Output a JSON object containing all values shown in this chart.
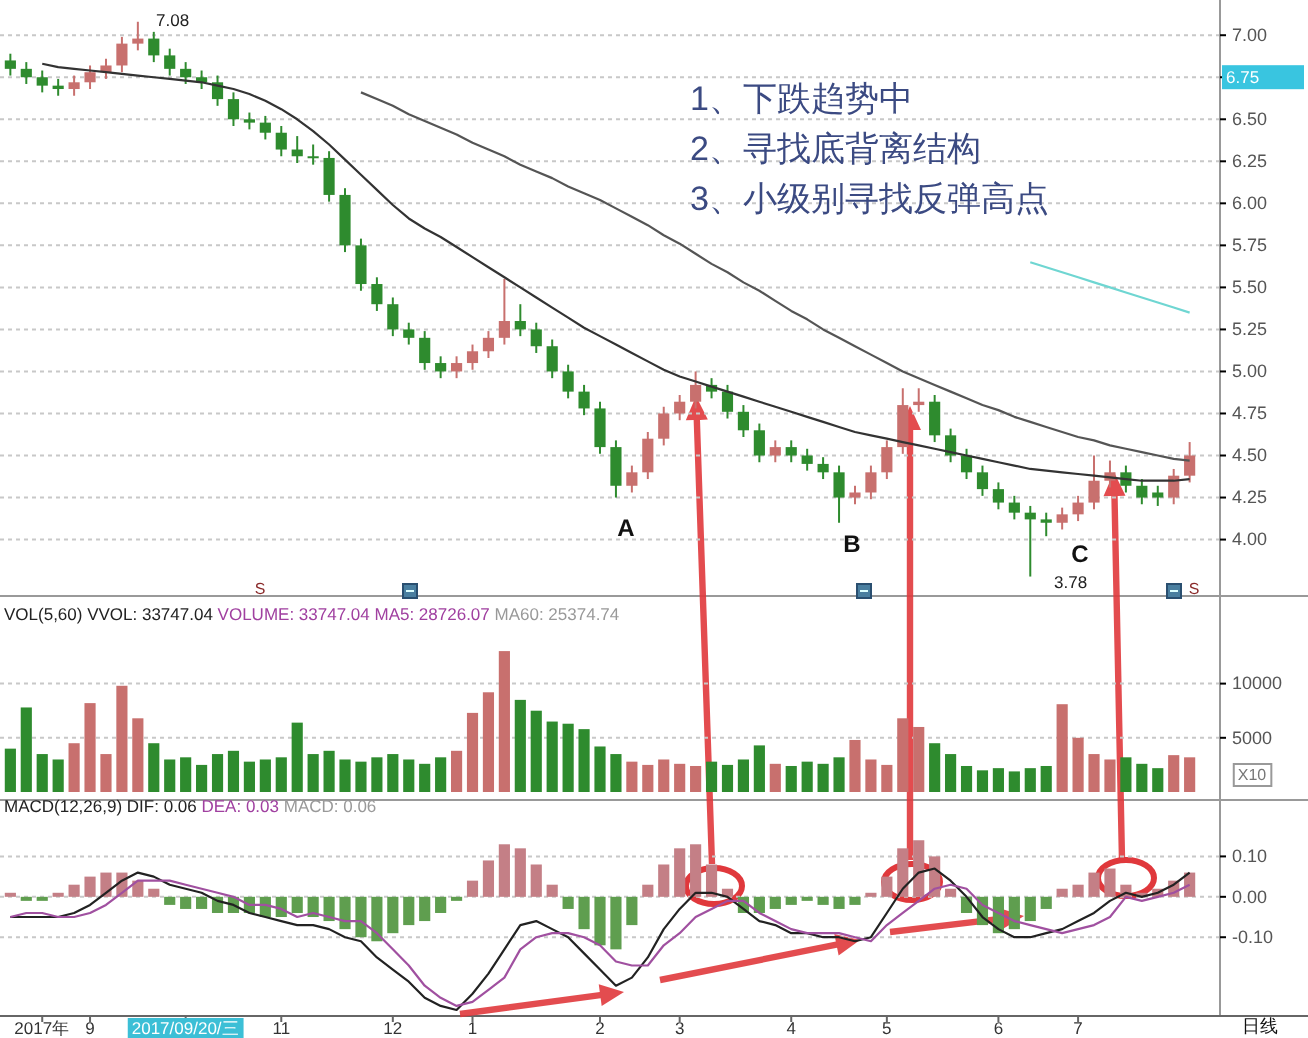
{
  "chart_data": [
    {
      "type": "candlestick",
      "tick_labels": "y",
      "grid": "y",
      "categories": [
        null,
        null,
        null,
        null,
        null,
        null,
        null,
        null,
        null,
        null,
        null,
        null,
        null,
        null,
        null,
        null,
        null,
        null,
        null,
        null,
        null,
        null,
        null,
        null,
        null,
        null,
        null,
        null,
        null,
        null,
        null,
        null,
        null,
        null,
        null,
        null,
        null,
        null,
        null,
        null,
        null,
        null,
        null,
        null,
        null,
        null,
        null,
        null,
        null,
        null,
        null,
        null,
        null,
        null,
        null,
        null,
        null,
        null,
        null,
        null,
        null,
        null,
        null,
        null,
        null,
        null,
        null,
        null,
        null,
        null,
        null,
        null,
        null,
        null,
        null
      ],
      "ylim": [
        3.7,
        7.15
      ],
      "yticks": [
        {
          "value": 4,
          "label": "4.00"
        },
        {
          "value": 4.25,
          "label": "4.25"
        },
        {
          "value": 4.5,
          "label": "4.50"
        },
        {
          "value": 4.75,
          "label": "4.75"
        },
        {
          "value": 5,
          "label": "5.00"
        },
        {
          "value": 5.25,
          "label": "5.25"
        },
        {
          "value": 5.5,
          "label": "5.50"
        },
        {
          "value": 5.75,
          "label": "5.75"
        },
        {
          "value": 6,
          "label": "6.00"
        },
        {
          "value": 6.25,
          "label": "6.25"
        },
        {
          "value": 6.5,
          "label": "6.50"
        },
        {
          "value": 6.75,
          "label": null
        },
        {
          "value": 7,
          "label": "7.00"
        }
      ],
      "ohlc": [
        [
          6.85,
          6.89,
          6.76,
          6.8
        ],
        [
          6.8,
          6.84,
          6.71,
          6.75
        ],
        [
          6.75,
          6.79,
          6.66,
          6.7
        ],
        [
          6.7,
          6.74,
          6.64,
          6.68
        ],
        [
          6.68,
          6.76,
          6.64,
          6.72
        ],
        [
          6.72,
          6.82,
          6.68,
          6.78
        ],
        [
          6.78,
          6.86,
          6.74,
          6.82
        ],
        [
          6.82,
          6.99,
          6.78,
          6.95
        ],
        [
          6.95,
          7.08,
          6.91,
          6.98
        ],
        [
          6.98,
          7.02,
          6.84,
          6.88
        ],
        [
          6.88,
          6.92,
          6.76,
          6.8
        ],
        [
          6.8,
          6.84,
          6.71,
          6.75
        ],
        [
          6.75,
          6.79,
          6.68,
          6.72
        ],
        [
          6.72,
          6.76,
          6.58,
          6.62
        ],
        [
          6.62,
          6.66,
          6.46,
          6.5
        ],
        [
          6.5,
          6.54,
          6.44,
          6.48
        ],
        [
          6.48,
          6.52,
          6.38,
          6.42
        ],
        [
          6.42,
          6.46,
          6.28,
          6.32
        ],
        [
          6.32,
          6.4,
          6.24,
          6.28
        ],
        [
          6.28,
          6.35,
          6.23,
          6.27
        ],
        [
          6.27,
          6.31,
          6.01,
          6.05
        ],
        [
          6.05,
          6.09,
          5.71,
          5.75
        ],
        [
          5.75,
          5.79,
          5.48,
          5.52
        ],
        [
          5.52,
          5.56,
          5.36,
          5.4
        ],
        [
          5.4,
          5.44,
          5.21,
          5.25
        ],
        [
          5.25,
          5.29,
          5.16,
          5.2
        ],
        [
          5.2,
          5.24,
          5.01,
          5.05
        ],
        [
          5.05,
          5.09,
          4.96,
          5.0
        ],
        [
          5.0,
          5.09,
          4.96,
          5.05
        ],
        [
          5.05,
          5.16,
          5.01,
          5.12
        ],
        [
          5.12,
          5.24,
          5.08,
          5.2
        ],
        [
          5.2,
          5.55,
          5.16,
          5.3
        ],
        [
          5.3,
          5.4,
          5.21,
          5.25
        ],
        [
          5.25,
          5.29,
          5.11,
          5.15
        ],
        [
          5.15,
          5.19,
          4.96,
          5.0
        ],
        [
          5.0,
          5.04,
          4.84,
          4.88
        ],
        [
          4.88,
          4.92,
          4.74,
          4.78
        ],
        [
          4.78,
          4.82,
          4.51,
          4.55
        ],
        [
          4.55,
          4.59,
          4.25,
          4.32
        ],
        [
          4.32,
          4.44,
          4.28,
          4.4
        ],
        [
          4.4,
          4.64,
          4.36,
          4.6
        ],
        [
          4.6,
          4.79,
          4.56,
          4.75
        ],
        [
          4.75,
          4.86,
          4.71,
          4.82
        ],
        [
          4.82,
          5.0,
          4.78,
          4.92
        ],
        [
          4.92,
          4.96,
          4.84,
          4.88
        ],
        [
          4.88,
          4.92,
          4.72,
          4.76
        ],
        [
          4.76,
          4.8,
          4.61,
          4.65
        ],
        [
          4.65,
          4.69,
          4.46,
          4.5
        ],
        [
          4.5,
          4.59,
          4.46,
          4.55
        ],
        [
          4.55,
          4.59,
          4.46,
          4.5
        ],
        [
          4.5,
          4.54,
          4.41,
          4.45
        ],
        [
          4.45,
          4.49,
          4.36,
          4.4
        ],
        [
          4.4,
          4.44,
          4.1,
          4.25
        ],
        [
          4.25,
          4.32,
          4.21,
          4.28
        ],
        [
          4.28,
          4.44,
          4.24,
          4.4
        ],
        [
          4.4,
          4.59,
          4.36,
          4.55
        ],
        [
          4.55,
          4.9,
          4.51,
          4.8
        ],
        [
          4.8,
          4.9,
          4.76,
          4.82
        ],
        [
          4.82,
          4.86,
          4.58,
          4.62
        ],
        [
          4.62,
          4.66,
          4.46,
          4.5
        ],
        [
          4.5,
          4.54,
          4.36,
          4.4
        ],
        [
          4.4,
          4.44,
          4.26,
          4.3
        ],
        [
          4.3,
          4.34,
          4.18,
          4.22
        ],
        [
          4.22,
          4.26,
          4.12,
          4.16
        ],
        [
          4.16,
          4.2,
          3.78,
          4.12
        ],
        [
          4.12,
          4.16,
          4.02,
          4.1
        ],
        [
          4.1,
          4.19,
          4.06,
          4.15
        ],
        [
          4.15,
          4.26,
          4.11,
          4.22
        ],
        [
          4.22,
          4.5,
          4.18,
          4.35
        ],
        [
          4.35,
          4.47,
          4.31,
          4.4
        ],
        [
          4.4,
          4.44,
          4.28,
          4.32
        ],
        [
          4.32,
          4.36,
          4.21,
          4.25
        ],
        [
          4.28,
          4.32,
          4.2,
          4.25
        ],
        [
          4.25,
          4.42,
          4.21,
          4.38
        ],
        [
          4.38,
          4.58,
          4.34,
          4.5
        ]
      ],
      "series": [
        {
          "type": "line",
          "color": "#333333",
          "values": [
            null,
            null,
            6.83,
            6.81,
            6.8,
            6.79,
            6.78,
            6.77,
            6.76,
            6.75,
            6.74,
            6.73,
            6.72,
            6.7,
            6.68,
            6.65,
            6.61,
            6.56,
            6.5,
            6.43,
            6.35,
            6.26,
            6.17,
            6.08,
            5.99,
            5.91,
            5.85,
            5.8,
            5.74,
            5.68,
            5.62,
            5.56,
            5.5,
            5.44,
            5.38,
            5.32,
            5.26,
            5.21,
            5.16,
            5.11,
            5.06,
            5.01,
            4.97,
            4.94,
            4.91,
            4.88,
            4.85,
            4.82,
            4.79,
            4.76,
            4.73,
            4.7,
            4.67,
            4.64,
            4.62,
            4.6,
            4.58,
            4.56,
            4.54,
            4.52,
            4.5,
            4.48,
            4.46,
            4.44,
            4.42,
            4.41,
            4.4,
            4.39,
            4.38,
            4.37,
            4.36,
            4.35,
            4.35,
            4.35,
            4.36
          ]
        },
        {
          "type": "line",
          "color": "#555555",
          "values": [
            null,
            null,
            null,
            null,
            null,
            null,
            null,
            null,
            null,
            null,
            null,
            null,
            null,
            null,
            null,
            null,
            null,
            null,
            null,
            null,
            null,
            null,
            6.66,
            6.62,
            6.58,
            6.53,
            6.49,
            6.45,
            6.41,
            6.36,
            6.32,
            6.28,
            6.23,
            6.19,
            6.15,
            6.1,
            6.06,
            6.02,
            5.97,
            5.92,
            5.87,
            5.81,
            5.76,
            5.7,
            5.64,
            5.59,
            5.53,
            5.48,
            5.42,
            5.36,
            5.31,
            5.25,
            5.2,
            5.15,
            5.1,
            5.05,
            5.0,
            4.96,
            4.92,
            4.88,
            4.84,
            4.8,
            4.77,
            4.73,
            4.7,
            4.67,
            4.64,
            4.61,
            4.59,
            4.56,
            4.54,
            4.52,
            4.5,
            4.48,
            4.47
          ]
        },
        {
          "type": "line",
          "color": "#6fd6d2",
          "values": [
            null,
            null,
            null,
            null,
            null,
            null,
            null,
            null,
            null,
            null,
            null,
            null,
            null,
            null,
            null,
            null,
            null,
            null,
            null,
            null,
            null,
            null,
            null,
            null,
            null,
            null,
            null,
            null,
            null,
            null,
            null,
            null,
            null,
            null,
            null,
            null,
            null,
            null,
            null,
            null,
            null,
            null,
            null,
            null,
            null,
            null,
            null,
            null,
            null,
            null,
            null,
            null,
            null,
            null,
            null,
            null,
            null,
            null,
            null,
            null,
            null,
            null,
            null,
            null,
            5.65,
            5.62,
            5.59,
            5.56,
            5.53,
            5.5,
            5.47,
            5.44,
            5.41,
            5.38,
            5.35
          ]
        }
      ],
      "annotations": [
        "1、下跌趋势中",
        "2、寻找底背离结构",
        "3、小级别寻找反弹高点",
        "7.08",
        "3.78",
        "A",
        "B",
        "C",
        "6.75",
        "S",
        "S"
      ]
    },
    {
      "type": "bar",
      "tick_labels": "y",
      "grid": "y",
      "title": "VOL(5,60)",
      "categories": [
        null,
        null,
        null,
        null,
        null,
        null,
        null,
        null,
        null,
        null,
        null,
        null,
        null,
        null,
        null,
        null,
        null,
        null,
        null,
        null,
        null,
        null,
        null,
        null,
        null,
        null,
        null,
        null,
        null,
        null,
        null,
        null,
        null,
        null,
        null,
        null,
        null,
        null,
        null,
        null,
        null,
        null,
        null,
        null,
        null,
        null,
        null,
        null,
        null,
        null,
        null,
        null,
        null,
        null,
        null,
        null,
        null,
        null,
        null,
        null,
        null,
        null,
        null,
        null,
        null,
        null,
        null,
        null,
        null,
        null,
        null,
        null,
        null,
        null,
        null
      ],
      "ylim": [
        0,
        15500
      ],
      "yticks": [
        5000,
        10000
      ],
      "values": [
        4000,
        7800,
        3500,
        3000,
        4500,
        8200,
        3500,
        9800,
        6800,
        4500,
        3000,
        3200,
        2500,
        3500,
        3800,
        2800,
        3000,
        3200,
        6400,
        3500,
        3800,
        3000,
        2800,
        3200,
        3500,
        3000,
        2600,
        3200,
        3800,
        7300,
        9200,
        13000,
        8500,
        7500,
        6500,
        6300,
        5800,
        4200,
        3500,
        2800,
        2500,
        3000,
        2600,
        2400,
        2800,
        2500,
        3000,
        4300,
        2600,
        2400,
        2800,
        2600,
        3200,
        4800,
        3000,
        2500,
        6800,
        6000,
        4500,
        3500,
        2400,
        2000,
        2200,
        1900,
        2200,
        2400,
        8100,
        5000,
        3500,
        3000,
        3200,
        2600,
        2200,
        3400,
        3200
      ],
      "colors": [
        "#2e8b2e",
        "#2e8b2e",
        "#2e8b2e",
        "#2e8b2e",
        "#c8706e",
        "#c8706e",
        "#c8706e",
        "#c8706e",
        "#c8706e",
        "#2e8b2e",
        "#2e8b2e",
        "#2e8b2e",
        "#2e8b2e",
        "#2e8b2e",
        "#2e8b2e",
        "#2e8b2e",
        "#2e8b2e",
        "#2e8b2e",
        "#2e8b2e",
        "#2e8b2e",
        "#2e8b2e",
        "#2e8b2e",
        "#2e8b2e",
        "#2e8b2e",
        "#2e8b2e",
        "#2e8b2e",
        "#2e8b2e",
        "#2e8b2e",
        "#c8706e",
        "#c8706e",
        "#c8706e",
        "#c8706e",
        "#2e8b2e",
        "#2e8b2e",
        "#2e8b2e",
        "#2e8b2e",
        "#2e8b2e",
        "#2e8b2e",
        "#2e8b2e",
        "#c8706e",
        "#c8706e",
        "#c8706e",
        "#c8706e",
        "#c8706e",
        "#2e8b2e",
        "#2e8b2e",
        "#2e8b2e",
        "#2e8b2e",
        "#c8706e",
        "#2e8b2e",
        "#2e8b2e",
        "#2e8b2e",
        "#2e8b2e",
        "#c8706e",
        "#c8706e",
        "#c8706e",
        "#c8706e",
        "#c8706e",
        "#2e8b2e",
        "#2e8b2e",
        "#2e8b2e",
        "#2e8b2e",
        "#2e8b2e",
        "#2e8b2e",
        "#2e8b2e",
        "#2e8b2e",
        "#c8706e",
        "#c8706e",
        "#c8706e",
        "#c8706e",
        "#2e8b2e",
        "#2e8b2e",
        "#2e8b2e",
        "#c8706e",
        "#c8706e"
      ],
      "annotations": [
        "VVOL: 33747.04",
        "VOLUME: 33747.04",
        "MA5: 28726.07",
        "MA60: 25374.74",
        "X10"
      ]
    },
    {
      "type": "bar",
      "grid": "y",
      "title": "MACD(12,26,9)",
      "categories": [
        null,
        null,
        "2017年",
        null,
        null,
        "9",
        null,
        null,
        null,
        null,
        null,
        "2017/09/20/三",
        null,
        null,
        null,
        null,
        null,
        "11",
        null,
        null,
        null,
        null,
        null,
        null,
        "12",
        null,
        null,
        null,
        null,
        "1",
        null,
        null,
        null,
        null,
        null,
        null,
        null,
        "2",
        null,
        null,
        null,
        null,
        "3",
        null,
        null,
        null,
        null,
        null,
        null,
        "4",
        null,
        null,
        null,
        null,
        null,
        "5",
        null,
        null,
        null,
        null,
        null,
        null,
        "6",
        null,
        null,
        null,
        null,
        "7",
        null,
        null,
        null,
        null,
        null,
        null,
        null
      ],
      "ylim": [
        -0.29,
        0.2
      ],
      "yticks": [
        {
          "value": -0.1,
          "label": "-0.10"
        },
        {
          "value": 0,
          "label": "0.00"
        },
        {
          "value": 0.1,
          "label": "0.10"
        }
      ],
      "series": [
        {
          "type": "line",
          "color": "#222222",
          "values": [
            -0.05,
            -0.05,
            -0.05,
            -0.05,
            -0.04,
            -0.02,
            0.01,
            0.04,
            0.06,
            0.05,
            0.03,
            0.02,
            0.01,
            -0.01,
            -0.02,
            -0.04,
            -0.05,
            -0.06,
            -0.07,
            -0.07,
            -0.08,
            -0.1,
            -0.11,
            -0.15,
            -0.18,
            -0.21,
            -0.25,
            -0.27,
            -0.28,
            -0.24,
            -0.19,
            -0.13,
            -0.07,
            -0.06,
            -0.08,
            -0.1,
            -0.14,
            -0.18,
            -0.22,
            -0.2,
            -0.15,
            -0.08,
            -0.03,
            0.01,
            0.01,
            0.0,
            -0.03,
            -0.06,
            -0.07,
            -0.09,
            -0.09,
            -0.1,
            -0.1,
            -0.11,
            -0.1,
            -0.04,
            0.02,
            0.06,
            0.07,
            0.04,
            0.0,
            -0.05,
            -0.08,
            -0.1,
            -0.1,
            -0.09,
            -0.08,
            -0.06,
            -0.04,
            -0.01,
            0.01,
            0.0,
            0.01,
            0.03,
            0.06
          ]
        },
        {
          "type": "line",
          "color": "#a050a0",
          "values": [
            -0.05,
            -0.04,
            -0.04,
            -0.05,
            -0.05,
            -0.04,
            -0.02,
            0.01,
            0.04,
            0.04,
            0.04,
            0.03,
            0.02,
            0.01,
            0.0,
            -0.02,
            -0.02,
            -0.03,
            -0.05,
            -0.04,
            -0.05,
            -0.06,
            -0.06,
            -0.09,
            -0.13,
            -0.17,
            -0.22,
            -0.25,
            -0.27,
            -0.26,
            -0.23,
            -0.2,
            -0.13,
            -0.1,
            -0.09,
            -0.09,
            -0.1,
            -0.12,
            -0.16,
            -0.17,
            -0.17,
            -0.12,
            -0.09,
            -0.05,
            -0.03,
            -0.01,
            -0.01,
            -0.04,
            -0.06,
            -0.08,
            -0.09,
            -0.09,
            -0.09,
            -0.1,
            -0.11,
            -0.07,
            -0.04,
            -0.01,
            0.02,
            0.03,
            0.02,
            -0.02,
            -0.04,
            -0.06,
            -0.07,
            -0.08,
            -0.09,
            -0.08,
            -0.07,
            -0.05,
            0.0,
            -0.01,
            0.0,
            0.01,
            0.03
          ]
        },
        {
          "type": "bar",
          "values": [
            0.01,
            -0.01,
            -0.01,
            0.01,
            0.03,
            0.05,
            0.06,
            0.06,
            0.04,
            0.02,
            -0.02,
            -0.03,
            -0.03,
            -0.04,
            -0.04,
            -0.04,
            -0.05,
            -0.05,
            -0.04,
            -0.05,
            -0.06,
            -0.08,
            -0.1,
            -0.11,
            -0.09,
            -0.07,
            -0.06,
            -0.04,
            -0.01,
            0.04,
            0.09,
            0.13,
            0.12,
            0.08,
            0.03,
            -0.03,
            -0.08,
            -0.12,
            -0.13,
            -0.07,
            0.03,
            0.08,
            0.12,
            0.13,
            0.08,
            0.02,
            -0.04,
            -0.04,
            -0.03,
            -0.02,
            -0.01,
            -0.02,
            -0.03,
            -0.02,
            0.01,
            0.05,
            0.12,
            0.14,
            0.1,
            0.02,
            -0.04,
            -0.07,
            -0.09,
            -0.08,
            -0.06,
            -0.03,
            0.02,
            0.03,
            0.06,
            0.07,
            0.03,
            0.01,
            0.02,
            0.04,
            0.06
          ],
          "colors": [
            "#c47f86",
            "#5f9e4f",
            "#5f9e4f",
            "#c47f86",
            "#c47f86",
            "#c47f86",
            "#c47f86",
            "#c47f86",
            "#c47f86",
            "#c47f86",
            "#5f9e4f",
            "#5f9e4f",
            "#5f9e4f",
            "#5f9e4f",
            "#5f9e4f",
            "#5f9e4f",
            "#5f9e4f",
            "#5f9e4f",
            "#5f9e4f",
            "#5f9e4f",
            "#5f9e4f",
            "#5f9e4f",
            "#5f9e4f",
            "#5f9e4f",
            "#5f9e4f",
            "#5f9e4f",
            "#5f9e4f",
            "#5f9e4f",
            "#5f9e4f",
            "#c47f86",
            "#c47f86",
            "#c47f86",
            "#c47f86",
            "#c47f86",
            "#c47f86",
            "#5f9e4f",
            "#5f9e4f",
            "#5f9e4f",
            "#5f9e4f",
            "#5f9e4f",
            "#c47f86",
            "#c47f86",
            "#c47f86",
            "#c47f86",
            "#c47f86",
            "#c47f86",
            "#5f9e4f",
            "#5f9e4f",
            "#5f9e4f",
            "#5f9e4f",
            "#5f9e4f",
            "#5f9e4f",
            "#5f9e4f",
            "#5f9e4f",
            "#c47f86",
            "#c47f86",
            "#c47f86",
            "#c47f86",
            "#c47f86",
            "#c47f86",
            "#5f9e4f",
            "#5f9e4f",
            "#5f9e4f",
            "#5f9e4f",
            "#5f9e4f",
            "#5f9e4f",
            "#c47f86",
            "#c47f86",
            "#c47f86",
            "#c47f86",
            "#c47f86",
            "#c47f86",
            "#c47f86",
            "#c47f86",
            "#c47f86"
          ]
        }
      ],
      "annotations": [
        "DIF: 0.06",
        "DEA: 0.03",
        "MACD: 0.06",
        "日线"
      ]
    }
  ]
}
